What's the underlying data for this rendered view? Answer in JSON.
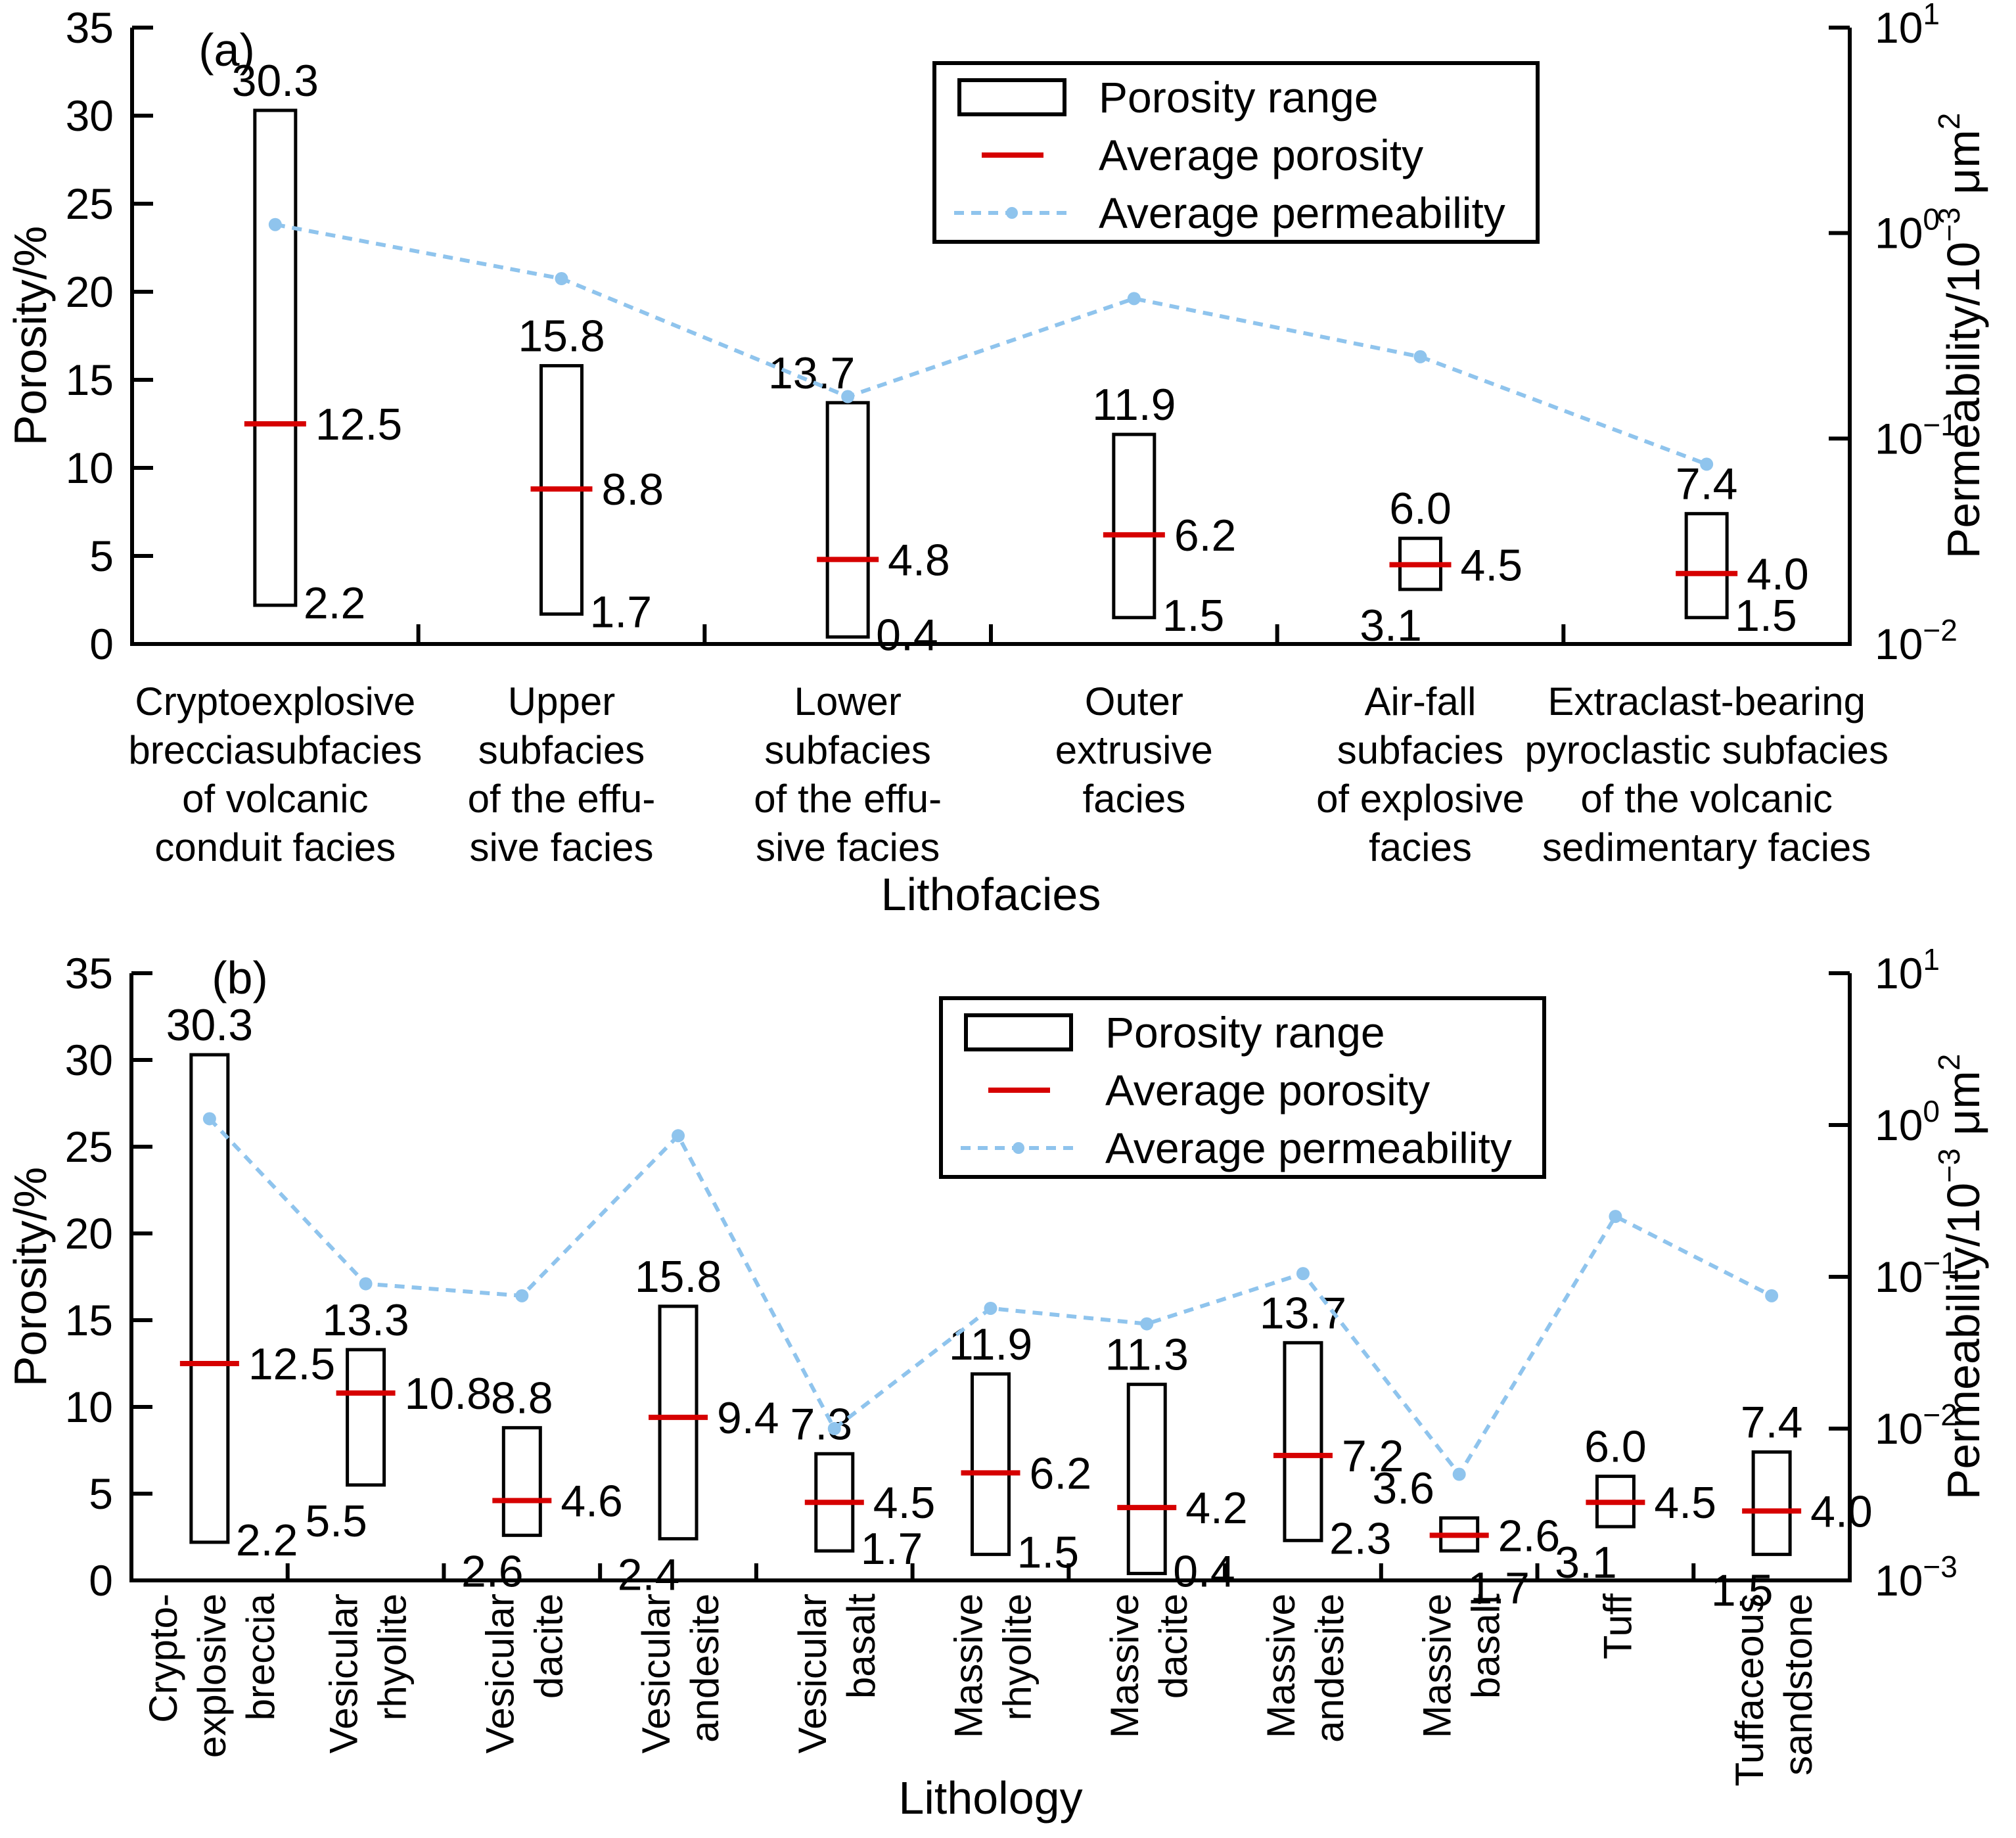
{
  "page": {
    "background": "#ffffff"
  },
  "colors": {
    "axis": "#000000",
    "bar_outline": "#000000",
    "average_porosity": "#d60000",
    "average_permeability": "#8fc4ed",
    "text": "#000000"
  },
  "legend": {
    "items": [
      {
        "label": "Porosity range",
        "type": "range-box"
      },
      {
        "label": "Average porosity",
        "type": "avg-line"
      },
      {
        "label": "Average permeability",
        "type": "perm-line"
      }
    ]
  },
  "chart_data": [
    {
      "panel_label": "(a)",
      "type": "bar",
      "subtype": "floating-range-bars-with-log-line",
      "xlabel": "Lithofacies",
      "ylabel_left": "Porosity/%",
      "ylabel_right_parts": [
        {
          "t": "Permeability/10"
        },
        {
          "t": "−3",
          "sup": true
        },
        {
          "t": " μm"
        },
        {
          "t": "2",
          "sup": true
        }
      ],
      "ylim_left": [
        0,
        35
      ],
      "yticks_left": [
        0,
        5,
        10,
        15,
        20,
        25,
        30,
        35
      ],
      "right_axis_log10_range": [
        -2,
        1
      ],
      "yticks_right": [
        {
          "base": "10",
          "exp": "−2"
        },
        {
          "base": "10",
          "exp": "−1"
        },
        {
          "base": "10",
          "exp": "0"
        },
        {
          "base": "10",
          "exp": "1"
        }
      ],
      "grid": false,
      "legend_position": "upper-center-right-inside",
      "categories": [
        {
          "name": "Cryptoexplosive brecciasubfacies of volcanic conduit facies",
          "lines": [
            "Cryptoexplosive",
            "brecciasubfacies",
            "of volcanic",
            "conduit facies"
          ]
        },
        {
          "name": "Upper subfacies of the effusive facies",
          "lines": [
            "Upper",
            "subfacies",
            "of the effu-",
            "sive facies"
          ]
        },
        {
          "name": "Lower subfacies of the effusive facies",
          "lines": [
            "Lower",
            "subfacies",
            "of the effu-",
            "sive facies"
          ]
        },
        {
          "name": "Outer extrusive facies",
          "lines": [
            "Outer",
            "extrusive",
            "facies"
          ]
        },
        {
          "name": "Air-fall subfacies of explosive facies",
          "lines": [
            "Air-fall",
            "subfacies",
            "of explosive",
            "facies"
          ]
        },
        {
          "name": "Extraclast-bearing pyroclastic subfacies of the volcanic sedimentary facies",
          "lines": [
            "Extraclast-bearing",
            "pyroclastic subfacies",
            "of the volcanic",
            "sedimentary facies"
          ]
        }
      ],
      "series": [
        {
          "name": "Porosity range",
          "min": [
            "2.2",
            "1.7",
            "0.4",
            "1.5",
            "3.1",
            "1.5"
          ],
          "max": [
            "30.3",
            "15.8",
            "13.7",
            "11.9",
            "6.0",
            "7.4"
          ]
        },
        {
          "name": "Average porosity",
          "values": [
            "12.5",
            "8.8",
            "4.8",
            "6.2",
            "4.5",
            "4.0"
          ]
        },
        {
          "name": "Average permeability",
          "unit": "10^-3 um^2",
          "values_estimated": [
            1.1,
            0.6,
            0.16,
            0.48,
            0.25,
            0.075
          ]
        }
      ]
    },
    {
      "panel_label": "(b)",
      "type": "bar",
      "subtype": "floating-range-bars-with-log-line",
      "xlabel": "Lithology",
      "ylabel_left": "Porosity/%",
      "ylabel_right_parts": [
        {
          "t": "Permeability/10"
        },
        {
          "t": "−3",
          "sup": true
        },
        {
          "t": " μm"
        },
        {
          "t": "2",
          "sup": true
        }
      ],
      "ylim_left": [
        0,
        35
      ],
      "yticks_left": [
        0,
        5,
        10,
        15,
        20,
        25,
        30,
        35
      ],
      "right_axis_log10_range": [
        -3,
        1
      ],
      "yticks_right": [
        {
          "base": "10",
          "exp": "−3"
        },
        {
          "base": "10",
          "exp": "−2"
        },
        {
          "base": "10",
          "exp": "−1"
        },
        {
          "base": "10",
          "exp": "0"
        },
        {
          "base": "10",
          "exp": "1"
        }
      ],
      "grid": false,
      "legend_position": "upper-center-right-inside",
      "categories": [
        {
          "name": "Crypto-explosive breccia",
          "lines": [
            "Crypto-",
            "explosive",
            "breccia"
          ]
        },
        {
          "name": "Vesicular rhyolite",
          "lines": [
            "Vesicular",
            "rhyolite"
          ]
        },
        {
          "name": "Vesicular dacite",
          "lines": [
            "Vesicular",
            "dacite"
          ]
        },
        {
          "name": "Vesicular andesite",
          "lines": [
            "Vesicular",
            "andesite"
          ]
        },
        {
          "name": "Vesicular basalt",
          "lines": [
            "Vesicular",
            "basalt"
          ]
        },
        {
          "name": "Massive rhyolite",
          "lines": [
            "Massive",
            "rhyolite"
          ]
        },
        {
          "name": "Massive dacite",
          "lines": [
            "Massive",
            "dacite"
          ]
        },
        {
          "name": "Massive andesite",
          "lines": [
            "Massive",
            "andesite"
          ]
        },
        {
          "name": "Massive basalt",
          "lines": [
            "Massive",
            "basalt"
          ]
        },
        {
          "name": "Tuff",
          "lines": [
            "Tuff"
          ]
        },
        {
          "name": "Tuffaceous sandstone",
          "lines": [
            "Tuffaceous",
            "sandstone"
          ]
        }
      ],
      "series": [
        {
          "name": "Porosity range",
          "min": [
            "2.2",
            "5.5",
            "2.6",
            "2.4",
            "1.7",
            "1.5",
            "0.4",
            "2.3",
            "1.7",
            "3.1",
            "1.5"
          ],
          "max": [
            "30.3",
            "13.3",
            "8.8",
            "15.8",
            "7.3",
            "11.9",
            "11.3",
            "13.7",
            "3.6",
            "6.0",
            "7.4"
          ]
        },
        {
          "name": "Average porosity",
          "values": [
            "12.5",
            "10.8",
            "4.6",
            "9.4",
            "4.5",
            "6.2",
            "4.2",
            "7.2",
            "2.6",
            "4.5",
            "4.0"
          ]
        },
        {
          "name": "Average permeability",
          "unit": "10^-3 um^2",
          "values_estimated": [
            1.1,
            0.09,
            0.075,
            0.85,
            0.01,
            0.062,
            0.049,
            0.105,
            0.005,
            0.25,
            0.075
          ]
        }
      ]
    }
  ]
}
